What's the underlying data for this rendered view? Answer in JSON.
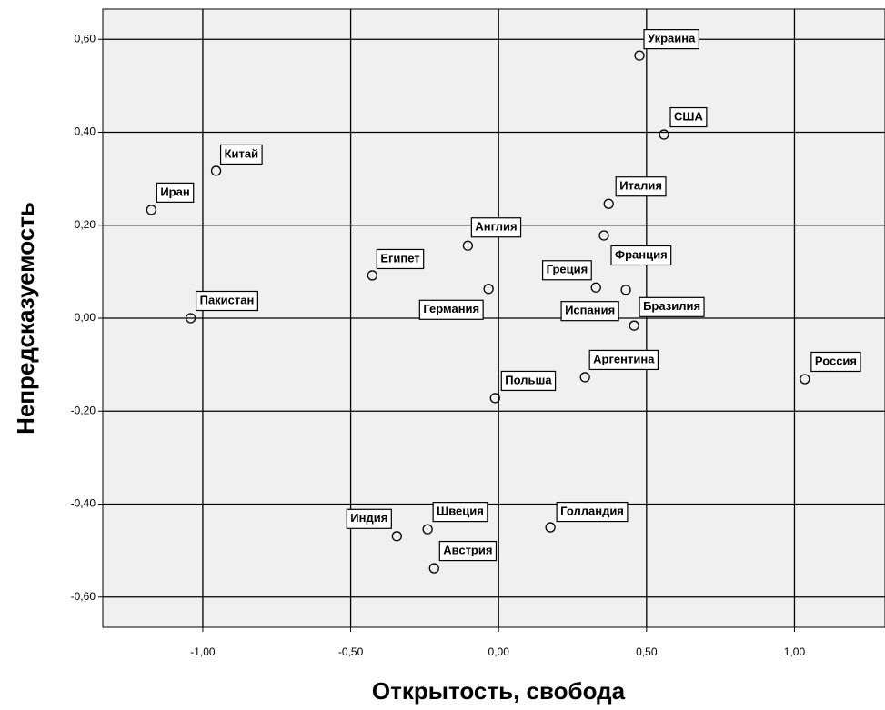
{
  "chart_data": {
    "type": "scatter",
    "x_label": "Открытость, свобода",
    "y_label": "Непредсказуемость",
    "labels": [
      "Украина",
      "США",
      "Китай",
      "Иран",
      "Италия",
      "Англия",
      "Франция",
      "Египет",
      "Греция",
      "Германия",
      "Бразилия",
      "Испания",
      "Пакистан",
      "Польша",
      "Аргентина",
      "Россия",
      "Индия",
      "Швеция",
      "Австрия",
      "Голландия"
    ],
    "x": [
      0.476,
      0.559,
      -0.955,
      -1.174,
      0.372,
      -0.104,
      0.356,
      -0.427,
      0.329,
      -0.034,
      0.43,
      0.458,
      -1.041,
      -0.012,
      0.292,
      1.035,
      -0.344,
      -0.24,
      -0.218,
      0.175
    ],
    "y": [
      0.565,
      0.395,
      0.317,
      0.233,
      0.246,
      0.156,
      0.178,
      0.092,
      0.066,
      0.063,
      0.061,
      -0.016,
      0.0,
      -0.172,
      -0.127,
      -0.131,
      -0.469,
      -0.454,
      -0.538,
      -0.45
    ],
    "xlim": [
      -1.338,
      1.306
    ],
    "ylim": [
      -0.665,
      0.665
    ],
    "xticks": [
      {
        "value": -1.0,
        "label": "-1,00"
      },
      {
        "value": -0.5,
        "label": "-0,50"
      },
      {
        "value": 0.0,
        "label": "0,00"
      },
      {
        "value": 0.5,
        "label": "0,50"
      },
      {
        "value": 1.0,
        "label": "1,00"
      }
    ],
    "yticks": [
      {
        "value": -0.6,
        "label": "-0,60"
      },
      {
        "value": -0.4,
        "label": "-0,40"
      },
      {
        "value": -0.2,
        "label": "-0,20"
      },
      {
        "value": 0.0,
        "label": "0,00"
      },
      {
        "value": 0.2,
        "label": "0,20"
      },
      {
        "value": 0.4,
        "label": "0,40"
      },
      {
        "value": 0.6,
        "label": "0,60"
      }
    ],
    "grid": true
  }
}
